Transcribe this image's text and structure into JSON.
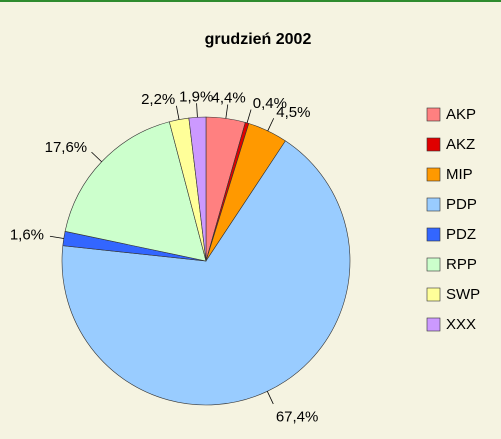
{
  "chart_data": {
    "type": "pie",
    "title": "grudzień 2002",
    "categories": [
      "AKP",
      "AKZ",
      "MIP",
      "PDP",
      "PDZ",
      "RPP",
      "SWP",
      "XXX"
    ],
    "values": [
      4.4,
      0.4,
      4.5,
      67.4,
      1.6,
      17.6,
      2.2,
      1.9
    ],
    "value_labels": [
      "4,4%",
      "0,4%",
      "4,5%",
      "67,4%",
      "1,6%",
      "17,6%",
      "2,2%",
      "1,9%"
    ],
    "colors": [
      "#ff8080",
      "#e00000",
      "#ff9900",
      "#99ccff",
      "#3366ff",
      "#ccffcc",
      "#ffff99",
      "#cc99ff"
    ],
    "legend": "right"
  }
}
